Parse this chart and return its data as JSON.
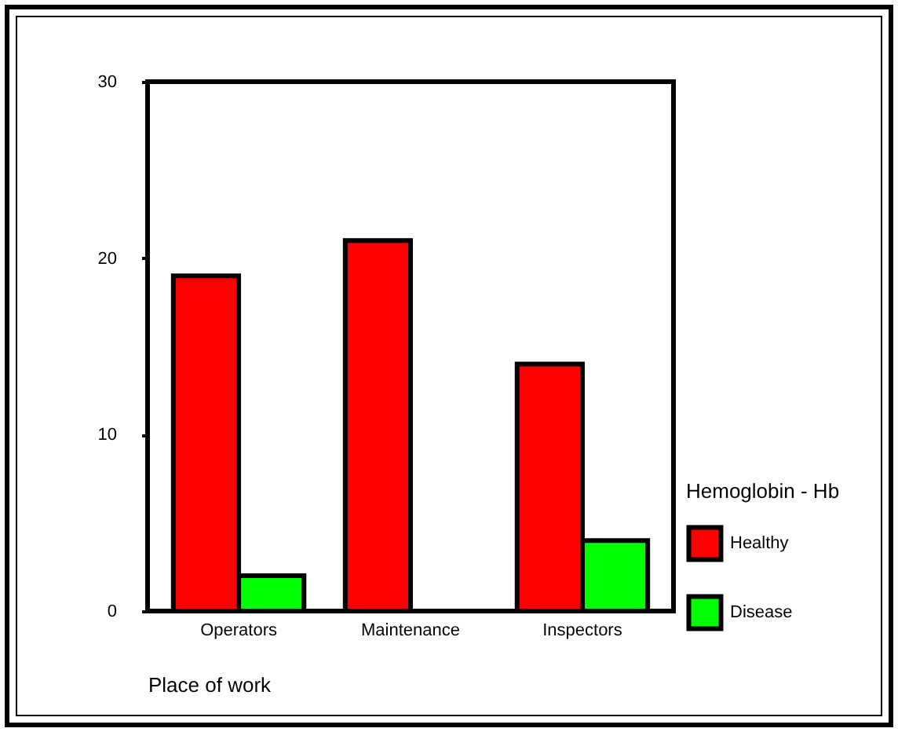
{
  "chart_data": {
    "type": "bar",
    "xlabel": "Place of work",
    "legend_title": "Hemoglobin - Hb",
    "legend": "right",
    "categories": [
      "Operators",
      "Maintenance",
      "Inspectors"
    ],
    "series": [
      {
        "name": "Healthy",
        "color": "#ff0000",
        "values": [
          19,
          21,
          14
        ]
      },
      {
        "name": "Disease",
        "color": "#00ff00",
        "values": [
          2,
          0,
          4
        ]
      }
    ],
    "ylim": [
      0,
      30
    ],
    "yticks": [
      0,
      10,
      20,
      30
    ],
    "grid": false
  }
}
